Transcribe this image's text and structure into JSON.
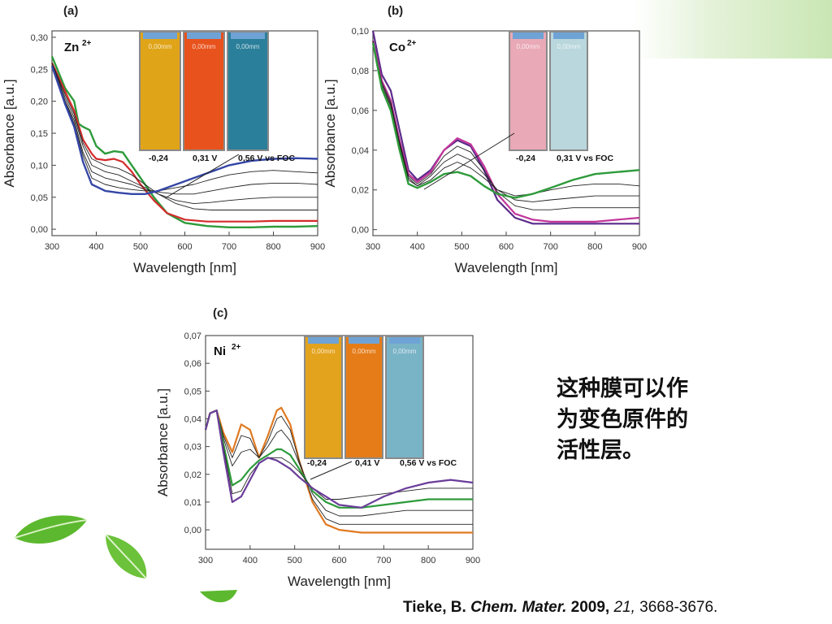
{
  "slide": {
    "caption_lines": [
      "这种膜可以作",
      "为变色原件的",
      "活性层。"
    ],
    "citation": {
      "author": "Tieke, B.",
      "journal": "Chem. Mater.",
      "year": "2009,",
      "volume": "21,",
      "pages": "3668-3676."
    },
    "colors": {
      "accent_green": "#2e9b3b",
      "corner_gradient": "#c9e6b4",
      "leaf_green": "#5cb82e"
    }
  },
  "chart_data": [
    {
      "type": "line",
      "panel_label": "(a)",
      "ion_label": "Zn",
      "ion_charge": "2+",
      "xlabel": "Wavelength [nm]",
      "ylabel": "Absorbance [a.u.]",
      "xlim": [
        300,
        900
      ],
      "ylim": [
        -0.01,
        0.31
      ],
      "x_ticks": [
        "300",
        "400",
        "500",
        "600",
        "700",
        "800",
        "900"
      ],
      "y_ticks": [
        "0,00",
        "0,05",
        "0,10",
        "0,15",
        "0,20",
        "0,25",
        "0,30"
      ],
      "x_tick_values": [
        300,
        400,
        500,
        600,
        700,
        800,
        900
      ],
      "y_tick_values": [
        0.0,
        0.05,
        0.1,
        0.15,
        0.2,
        0.25,
        0.3
      ],
      "potential_labels": [
        "-0,24",
        "0,31 V",
        "0,56 V vs FOC"
      ],
      "cuvette_labels": [
        "0,00mm",
        "0,00mm",
        "0,00mm"
      ],
      "cuvette_colors": [
        "#e0a419",
        "#e8521c",
        "#2a7f9a"
      ],
      "series": [
        {
          "color": "#2e9b3b",
          "width": 2.4,
          "x": [
            300,
            330,
            350,
            360,
            370,
            385,
            400,
            420,
            440,
            460,
            480,
            500,
            530,
            560,
            600,
            650,
            700,
            750,
            800,
            850,
            900
          ],
          "y": [
            0.27,
            0.22,
            0.2,
            0.165,
            0.16,
            0.155,
            0.13,
            0.118,
            0.122,
            0.12,
            0.1,
            0.08,
            0.05,
            0.025,
            0.01,
            0.005,
            0.003,
            0.003,
            0.004,
            0.004,
            0.005
          ]
        },
        {
          "color": "#d42b2b",
          "width": 2.2,
          "x": [
            300,
            330,
            350,
            370,
            390,
            400,
            420,
            440,
            460,
            480,
            500,
            530,
            560,
            600,
            650,
            700,
            750,
            800,
            850,
            900
          ],
          "y": [
            0.26,
            0.215,
            0.185,
            0.14,
            0.118,
            0.11,
            0.108,
            0.11,
            0.105,
            0.09,
            0.07,
            0.045,
            0.025,
            0.015,
            0.012,
            0.012,
            0.012,
            0.013,
            0.013,
            0.013
          ]
        },
        {
          "color": "#222222",
          "width": 0.9,
          "x": [
            300,
            330,
            350,
            370,
            390,
            420,
            450,
            480,
            510,
            540,
            580,
            620,
            660,
            700,
            750,
            800,
            850,
            900
          ],
          "y": [
            0.26,
            0.21,
            0.18,
            0.135,
            0.11,
            0.1,
            0.095,
            0.085,
            0.07,
            0.055,
            0.04,
            0.032,
            0.03,
            0.03,
            0.03,
            0.03,
            0.03,
            0.03
          ]
        },
        {
          "color": "#222222",
          "width": 0.9,
          "x": [
            300,
            330,
            350,
            370,
            390,
            420,
            450,
            480,
            510,
            540,
            580,
            620,
            660,
            700,
            750,
            800,
            850,
            900
          ],
          "y": [
            0.26,
            0.205,
            0.175,
            0.13,
            0.1,
            0.09,
            0.085,
            0.075,
            0.065,
            0.055,
            0.045,
            0.04,
            0.042,
            0.045,
            0.048,
            0.05,
            0.05,
            0.05
          ]
        },
        {
          "color": "#222222",
          "width": 0.9,
          "x": [
            300,
            330,
            350,
            370,
            390,
            420,
            450,
            480,
            510,
            540,
            580,
            620,
            660,
            700,
            750,
            800,
            850,
            900
          ],
          "y": [
            0.26,
            0.2,
            0.17,
            0.12,
            0.09,
            0.08,
            0.075,
            0.07,
            0.062,
            0.058,
            0.055,
            0.055,
            0.06,
            0.065,
            0.07,
            0.072,
            0.072,
            0.07
          ]
        },
        {
          "color": "#222222",
          "width": 0.9,
          "x": [
            300,
            330,
            350,
            370,
            390,
            420,
            450,
            480,
            510,
            540,
            580,
            620,
            660,
            700,
            750,
            800,
            850,
            900
          ],
          "y": [
            0.255,
            0.2,
            0.165,
            0.115,
            0.08,
            0.07,
            0.065,
            0.062,
            0.06,
            0.06,
            0.065,
            0.07,
            0.078,
            0.085,
            0.09,
            0.092,
            0.09,
            0.088
          ]
        },
        {
          "color": "#3446a6",
          "width": 2.4,
          "x": [
            300,
            330,
            350,
            370,
            390,
            420,
            450,
            480,
            510,
            540,
            580,
            620,
            660,
            700,
            750,
            800,
            850,
            900
          ],
          "y": [
            0.255,
            0.195,
            0.16,
            0.105,
            0.07,
            0.06,
            0.057,
            0.055,
            0.055,
            0.06,
            0.07,
            0.08,
            0.09,
            0.1,
            0.107,
            0.11,
            0.111,
            0.11
          ]
        }
      ]
    },
    {
      "type": "line",
      "panel_label": "(b)",
      "ion_label": "Co",
      "ion_charge": "2+",
      "xlabel": "Wavelength [nm]",
      "ylabel": "Absorbance [a.u.]",
      "xlim": [
        300,
        900
      ],
      "ylim": [
        -0.003,
        0.1
      ],
      "x_ticks": [
        "300",
        "400",
        "500",
        "600",
        "700",
        "800",
        "900"
      ],
      "y_ticks": [
        "0,00",
        "0,02",
        "0,04",
        "0,06",
        "0,08",
        "0,10"
      ],
      "x_tick_values": [
        300,
        400,
        500,
        600,
        700,
        800,
        900
      ],
      "y_tick_values": [
        0.0,
        0.02,
        0.04,
        0.06,
        0.08,
        0.1
      ],
      "potential_labels": [
        "-0,24",
        "0,31 V vs FOC"
      ],
      "cuvette_labels": [
        "0,00mm",
        "0,00mm"
      ],
      "cuvette_colors": [
        "#e9a9b7",
        "#b9d7dc"
      ],
      "series": [
        {
          "color": "#5b2a8a",
          "width": 2.2,
          "x": [
            300,
            320,
            340,
            360,
            380,
            400,
            430,
            460,
            490,
            520,
            550,
            580,
            620,
            660,
            700,
            750,
            800,
            850,
            900
          ],
          "y": [
            0.1,
            0.078,
            0.07,
            0.05,
            0.03,
            0.025,
            0.03,
            0.04,
            0.045,
            0.042,
            0.03,
            0.015,
            0.006,
            0.003,
            0.003,
            0.003,
            0.003,
            0.003,
            0.003
          ]
        },
        {
          "color": "#c2369b",
          "width": 2.2,
          "x": [
            300,
            320,
            340,
            360,
            380,
            400,
            430,
            460,
            490,
            520,
            550,
            580,
            620,
            660,
            700,
            750,
            800,
            850,
            900
          ],
          "y": [
            0.095,
            0.075,
            0.065,
            0.045,
            0.028,
            0.024,
            0.029,
            0.04,
            0.046,
            0.043,
            0.032,
            0.018,
            0.008,
            0.005,
            0.004,
            0.004,
            0.004,
            0.005,
            0.006
          ]
        },
        {
          "color": "#222222",
          "width": 0.9,
          "x": [
            300,
            320,
            340,
            360,
            380,
            400,
            430,
            460,
            490,
            520,
            550,
            580,
            620,
            660,
            700,
            750,
            800,
            850,
            900
          ],
          "y": [
            0.095,
            0.074,
            0.064,
            0.044,
            0.027,
            0.023,
            0.028,
            0.037,
            0.042,
            0.039,
            0.03,
            0.019,
            0.012,
            0.01,
            0.01,
            0.011,
            0.011,
            0.011,
            0.011
          ]
        },
        {
          "color": "#222222",
          "width": 0.9,
          "x": [
            300,
            320,
            340,
            360,
            380,
            400,
            430,
            460,
            490,
            520,
            550,
            580,
            620,
            660,
            700,
            750,
            800,
            850,
            900
          ],
          "y": [
            0.095,
            0.073,
            0.063,
            0.043,
            0.026,
            0.022,
            0.027,
            0.034,
            0.038,
            0.035,
            0.028,
            0.02,
            0.015,
            0.014,
            0.015,
            0.016,
            0.017,
            0.017,
            0.017
          ]
        },
        {
          "color": "#222222",
          "width": 0.9,
          "x": [
            300,
            320,
            340,
            360,
            380,
            400,
            430,
            460,
            490,
            520,
            550,
            580,
            620,
            660,
            700,
            750,
            800,
            850,
            900
          ],
          "y": [
            0.094,
            0.072,
            0.062,
            0.042,
            0.025,
            0.022,
            0.025,
            0.031,
            0.034,
            0.031,
            0.026,
            0.02,
            0.017,
            0.018,
            0.02,
            0.022,
            0.023,
            0.023,
            0.022
          ]
        },
        {
          "color": "#2e9b3b",
          "width": 2.4,
          "x": [
            300,
            320,
            340,
            360,
            380,
            400,
            430,
            460,
            490,
            520,
            550,
            580,
            620,
            660,
            700,
            750,
            800,
            850,
            900
          ],
          "y": [
            0.094,
            0.071,
            0.06,
            0.04,
            0.023,
            0.021,
            0.024,
            0.028,
            0.029,
            0.027,
            0.022,
            0.018,
            0.016,
            0.018,
            0.021,
            0.025,
            0.028,
            0.029,
            0.03
          ]
        }
      ]
    },
    {
      "type": "line",
      "panel_label": "(c)",
      "ion_label": "Ni",
      "ion_charge": "2+",
      "xlabel": "Wavelength [nm]",
      "ylabel": "Absorbance [a.u.]",
      "xlim": [
        300,
        900
      ],
      "ylim": [
        -0.007,
        0.07
      ],
      "x_ticks": [
        "300",
        "400",
        "500",
        "600",
        "700",
        "800",
        "900"
      ],
      "y_ticks": [
        "0,00",
        "0,01",
        "0,02",
        "0,03",
        "0,04",
        "0,05",
        "0,06",
        "0,07"
      ],
      "x_tick_values": [
        300,
        400,
        500,
        600,
        700,
        800,
        900
      ],
      "y_tick_values": [
        0.0,
        0.01,
        0.02,
        0.03,
        0.04,
        0.05,
        0.06,
        0.07
      ],
      "potential_labels": [
        "-0,24",
        "0,41 V",
        "0,56 V vs FOC"
      ],
      "cuvette_labels": [
        "0,00mm",
        "0,00mm",
        "0,00mm"
      ],
      "cuvette_colors": [
        "#e4a31d",
        "#e57c17",
        "#79b3c6"
      ],
      "series": [
        {
          "color": "#e07a22",
          "width": 2.2,
          "x": [
            300,
            310,
            325,
            340,
            360,
            380,
            400,
            420,
            440,
            460,
            470,
            490,
            510,
            540,
            570,
            600,
            650,
            700,
            750,
            800,
            850,
            900
          ],
          "y": [
            0.036,
            0.042,
            0.043,
            0.035,
            0.028,
            0.038,
            0.036,
            0.026,
            0.034,
            0.043,
            0.044,
            0.038,
            0.025,
            0.01,
            0.002,
            0.0,
            -0.001,
            -0.001,
            -0.001,
            -0.001,
            -0.001,
            -0.001
          ]
        },
        {
          "color": "#222222",
          "width": 0.9,
          "x": [
            300,
            310,
            325,
            340,
            360,
            380,
            400,
            420,
            440,
            460,
            470,
            490,
            510,
            540,
            570,
            600,
            650,
            700,
            750,
            800,
            850,
            900
          ],
          "y": [
            0.036,
            0.042,
            0.043,
            0.034,
            0.026,
            0.034,
            0.033,
            0.026,
            0.032,
            0.04,
            0.041,
            0.036,
            0.025,
            0.011,
            0.004,
            0.002,
            0.002,
            0.002,
            0.002,
            0.002,
            0.002,
            0.002
          ]
        },
        {
          "color": "#222222",
          "width": 0.9,
          "x": [
            300,
            310,
            325,
            340,
            360,
            380,
            400,
            420,
            440,
            460,
            470,
            490,
            510,
            540,
            570,
            600,
            650,
            700,
            750,
            800,
            850,
            900
          ],
          "y": [
            0.036,
            0.042,
            0.043,
            0.033,
            0.023,
            0.028,
            0.029,
            0.026,
            0.03,
            0.035,
            0.036,
            0.032,
            0.024,
            0.013,
            0.007,
            0.005,
            0.005,
            0.006,
            0.007,
            0.007,
            0.007,
            0.007
          ]
        },
        {
          "color": "#2e9b3b",
          "width": 2.2,
          "x": [
            300,
            310,
            325,
            340,
            360,
            380,
            400,
            420,
            440,
            460,
            470,
            490,
            510,
            540,
            570,
            600,
            650,
            700,
            750,
            800,
            850,
            900
          ],
          "y": [
            0.036,
            0.042,
            0.043,
            0.031,
            0.016,
            0.018,
            0.022,
            0.025,
            0.027,
            0.029,
            0.029,
            0.027,
            0.022,
            0.014,
            0.01,
            0.008,
            0.008,
            0.009,
            0.01,
            0.011,
            0.011,
            0.011
          ]
        },
        {
          "color": "#222222",
          "width": 0.9,
          "x": [
            300,
            310,
            325,
            340,
            360,
            380,
            400,
            420,
            440,
            460,
            470,
            490,
            510,
            540,
            570,
            600,
            650,
            700,
            750,
            800,
            850,
            900
          ],
          "y": [
            0.036,
            0.042,
            0.043,
            0.03,
            0.013,
            0.014,
            0.02,
            0.024,
            0.026,
            0.026,
            0.026,
            0.024,
            0.021,
            0.015,
            0.011,
            0.011,
            0.012,
            0.013,
            0.014,
            0.015,
            0.015,
            0.015
          ]
        },
        {
          "color": "#6a3d9a",
          "width": 2.2,
          "x": [
            300,
            310,
            325,
            340,
            360,
            380,
            400,
            420,
            440,
            460,
            470,
            490,
            510,
            540,
            570,
            600,
            650,
            700,
            750,
            800,
            850,
            900
          ],
          "y": [
            0.036,
            0.042,
            0.043,
            0.028,
            0.01,
            0.012,
            0.018,
            0.024,
            0.026,
            0.025,
            0.024,
            0.022,
            0.019,
            0.015,
            0.012,
            0.009,
            0.008,
            0.012,
            0.015,
            0.017,
            0.018,
            0.017
          ]
        }
      ]
    }
  ]
}
